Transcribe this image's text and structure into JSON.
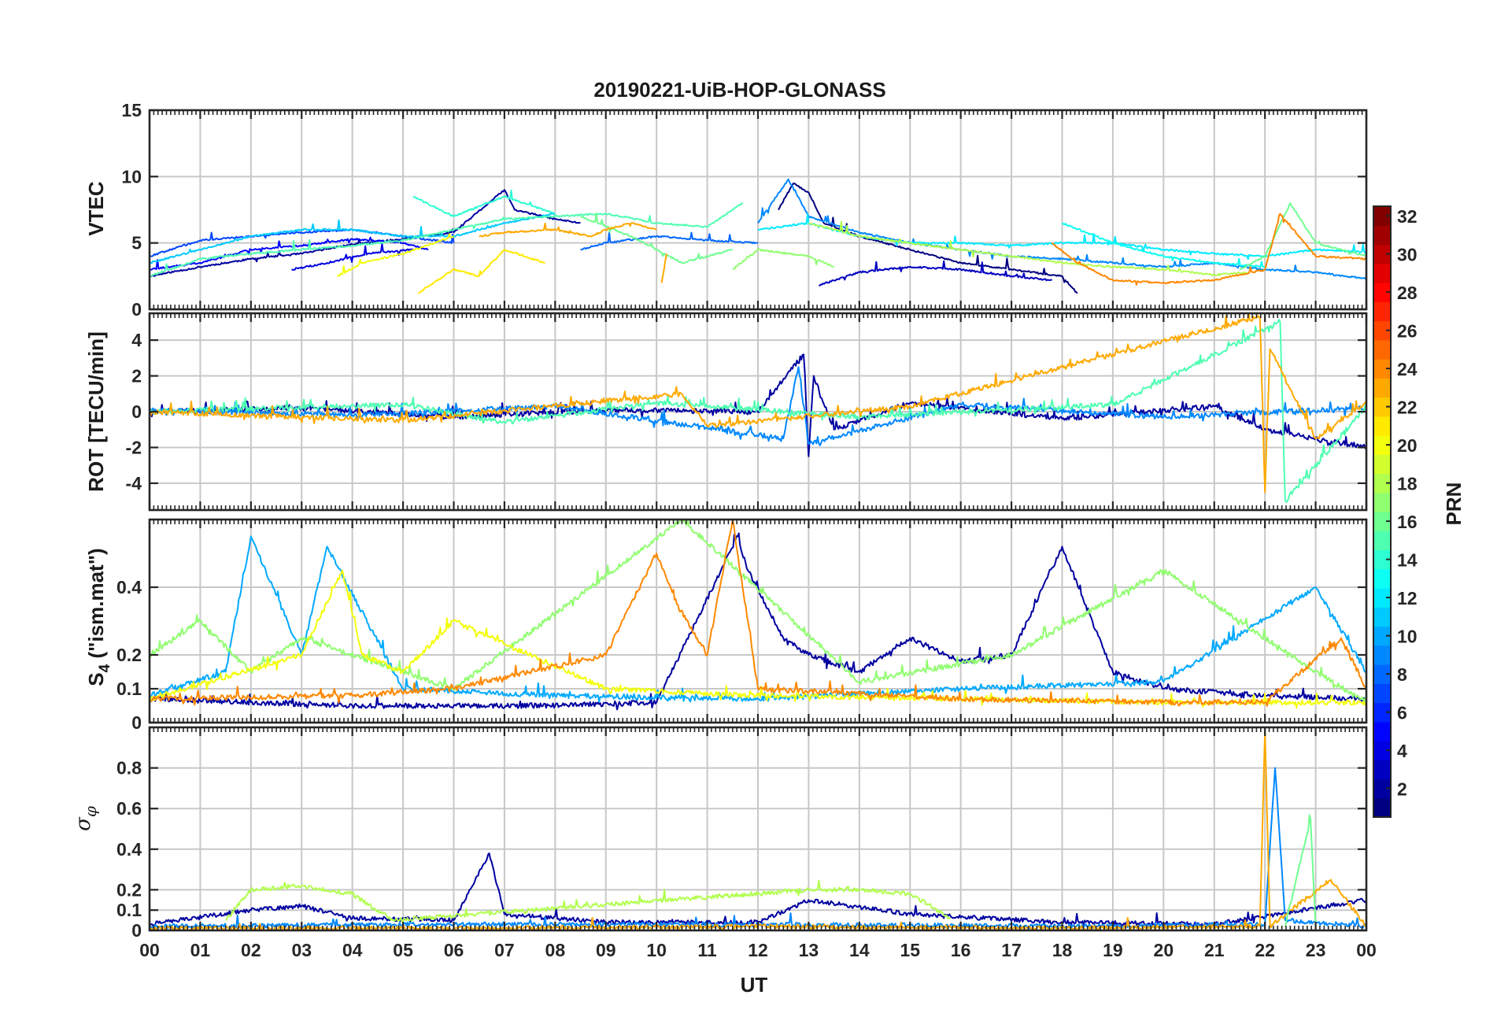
{
  "figure": {
    "title": "20190221-UiB-HOP-GLONASS",
    "x_axis_label": "UT",
    "colorbar_label": "PRN"
  },
  "colors": {
    "grid": "#c8c8c8",
    "axes": "#262626",
    "colormap": "jet"
  },
  "chart_data": [
    {
      "type": "line",
      "panel": "VTEC",
      "ylabel": "VTEC",
      "ylim": [
        0,
        15
      ],
      "yticks": [
        0,
        5,
        10,
        15
      ],
      "ytick_labels": [
        "0",
        "5",
        "10",
        "15"
      ],
      "xlim": [
        0,
        24
      ],
      "xtick_labels": [
        "00",
        "01",
        "02",
        "03",
        "04",
        "05",
        "06",
        "07",
        "08",
        "09",
        "10",
        "11",
        "12",
        "13",
        "14",
        "15",
        "16",
        "17",
        "18",
        "19",
        "20",
        "21",
        "22",
        "23",
        "00"
      ],
      "xlabel": "",
      "grid": true,
      "series": [
        {
          "prn": 2,
          "x": [
            0.0,
            1.0,
            2.0,
            3.0,
            4.0,
            5.0,
            6.0,
            7.0,
            7.2,
            8.0,
            8.5
          ],
          "y": [
            2.5,
            3.2,
            3.8,
            4.2,
            4.9,
            5.3,
            5.8,
            9.0,
            7.5,
            6.8,
            6.5
          ]
        },
        {
          "prn": 1,
          "x": [
            12.4,
            12.7,
            13.0,
            13.3,
            14.0,
            15.0,
            16.0,
            17.0,
            18.0,
            18.3
          ],
          "y": [
            7.5,
            9.5,
            8.8,
            6.5,
            5.5,
            4.5,
            3.5,
            3.0,
            2.5,
            1.2
          ]
        },
        {
          "prn": 4,
          "x": [
            2.8,
            3.5,
            4.3,
            5.2
          ],
          "y": [
            3.0,
            3.5,
            4.2,
            4.5
          ]
        },
        {
          "prn": 5,
          "x": [
            0.0,
            1.0,
            2.0,
            3.0,
            4.0,
            5.0,
            5.5
          ],
          "y": [
            3.0,
            3.5,
            4.5,
            4.8,
            5.3,
            5.0,
            4.5
          ]
        },
        {
          "prn": 3,
          "x": [
            13.2,
            14.0,
            15.0,
            16.0,
            17.0,
            17.8
          ],
          "y": [
            1.8,
            2.8,
            3.2,
            3.0,
            2.5,
            2.2
          ]
        },
        {
          "prn": 7,
          "x": [
            0.0,
            1.0,
            2.0,
            3.0,
            4.0,
            5.0,
            6.0
          ],
          "y": [
            4.0,
            5.2,
            5.5,
            5.8,
            6.0,
            5.5,
            5.0
          ]
        },
        {
          "prn": 8,
          "x": [
            8.5,
            9.0,
            10.0,
            11.0,
            12.0
          ],
          "y": [
            4.5,
            5.0,
            5.5,
            5.2,
            5.0
          ]
        },
        {
          "prn": 9,
          "x": [
            12.0,
            12.6,
            13.0,
            14.0,
            15.0,
            16.0,
            17.0,
            18.0,
            19.0,
            20.0,
            21.0,
            22.0,
            23.0,
            24.0
          ],
          "y": [
            6.5,
            9.8,
            7.0,
            5.8,
            5.0,
            4.5,
            4.0,
            3.8,
            3.5,
            3.2,
            3.5,
            3.0,
            2.8,
            2.3
          ]
        },
        {
          "prn": 11,
          "x": [
            0.0,
            1.0,
            2.0,
            3.0,
            4.0,
            5.0,
            6.0,
            7.0,
            8.0
          ],
          "y": [
            3.5,
            4.5,
            5.5,
            6.0,
            6.0,
            5.5,
            5.5,
            6.5,
            7.2
          ]
        },
        {
          "prn": 12,
          "x": [
            12.0,
            13.0,
            14.0,
            15.0,
            16.0,
            17.0,
            18.0,
            19.0,
            20.0,
            21.0,
            22.0,
            23.0,
            24.0
          ],
          "y": [
            6.0,
            6.5,
            5.5,
            5.0,
            5.0,
            4.8,
            5.0,
            5.0,
            4.5,
            4.2,
            4.0,
            4.5,
            4.3
          ]
        },
        {
          "prn": 14,
          "x": [
            5.2,
            6.0,
            7.0,
            8.0
          ],
          "y": [
            8.5,
            7.0,
            8.5,
            7.2
          ]
        },
        {
          "prn": 13,
          "x": [
            18.0,
            19.0,
            20.0,
            21.0,
            22.0
          ],
          "y": [
            6.5,
            5.0,
            4.0,
            3.5,
            3.2
          ]
        },
        {
          "prn": 15,
          "x": [
            0.0,
            1.0,
            2.0,
            3.0,
            4.0,
            5.0,
            6.0,
            7.0,
            8.0,
            9.0,
            10.0,
            11.0,
            11.7
          ],
          "y": [
            2.5,
            3.8,
            4.2,
            4.5,
            4.8,
            5.2,
            6.0,
            6.8,
            7.0,
            7.2,
            6.5,
            6.2,
            8.0
          ]
        },
        {
          "prn": 16,
          "x": [
            8.5,
            9.5,
            10.5,
            11.5
          ],
          "y": [
            7.0,
            5.5,
            3.5,
            4.5
          ]
        },
        {
          "prn": 17,
          "x": [
            11.5,
            12.0,
            13.0,
            13.5
          ],
          "y": [
            3.0,
            4.5,
            4.0,
            3.2
          ]
        },
        {
          "prn": 18,
          "x": [
            13.0,
            14.0,
            15.0,
            16.0,
            17.0,
            18.0,
            19.0,
            20.0,
            21.0,
            21.7
          ],
          "y": [
            6.5,
            5.5,
            5.0,
            4.5,
            4.0,
            3.5,
            3.2,
            3.0,
            2.6,
            2.8
          ]
        },
        {
          "prn": 16,
          "x": [
            21.5,
            22.0,
            22.5,
            23.0,
            24.0
          ],
          "y": [
            3.0,
            4.0,
            8.0,
            5.0,
            4.0
          ]
        },
        {
          "prn": 20,
          "x": [
            3.7,
            4.2,
            5.0,
            6.0
          ],
          "y": [
            2.5,
            3.5,
            4.2,
            5.5
          ]
        },
        {
          "prn": 21,
          "x": [
            5.3,
            5.6,
            6.0,
            6.5,
            7.0,
            7.8
          ],
          "y": [
            1.2,
            2.0,
            3.0,
            2.5,
            4.5,
            3.5
          ]
        },
        {
          "prn": 23,
          "x": [
            6.5,
            7.0,
            8.0,
            8.7,
            9.0,
            9.5,
            10.0
          ],
          "y": [
            5.5,
            5.8,
            6.0,
            5.5,
            6.0,
            6.5,
            6.0
          ]
        },
        {
          "prn": 23,
          "x": [
            10.1,
            10.2
          ],
          "y": [
            2.0,
            4.2
          ]
        },
        {
          "prn": 24,
          "x": [
            17.8,
            18.3,
            19.0,
            20.0,
            21.0,
            22.0,
            22.3,
            23.0,
            24.0
          ],
          "y": [
            5.0,
            3.5,
            2.2,
            2.0,
            2.2,
            3.0,
            7.2,
            4.0,
            3.8
          ]
        }
      ]
    },
    {
      "type": "line",
      "panel": "ROT",
      "ylabel": "ROT [TECU/min]",
      "ylim": [
        -5.5,
        5.5
      ],
      "yticks": [
        -4,
        -2,
        0,
        2,
        4
      ],
      "ytick_labels": [
        "-4",
        "-2",
        "0",
        "2",
        "4"
      ],
      "xlim": [
        0,
        24
      ],
      "xtick_labels": [
        "00",
        "01",
        "02",
        "03",
        "04",
        "05",
        "06",
        "07",
        "08",
        "09",
        "10",
        "11",
        "12",
        "13",
        "14",
        "15",
        "16",
        "17",
        "18",
        "19",
        "20",
        "21",
        "22",
        "23",
        "00"
      ],
      "xlabel": "",
      "grid": true,
      "series": [
        {
          "prn": 2,
          "x": [
            0.0,
            3.0,
            6.0,
            9.0,
            12.0,
            12.9,
            13.0,
            13.1,
            13.5,
            15.0,
            18.0,
            21.0,
            22.0,
            23.0,
            24.0
          ],
          "y": [
            0.0,
            0.2,
            -0.3,
            0.1,
            0.0,
            3.2,
            -2.5,
            2.0,
            -1.0,
            0.5,
            -0.4,
            0.3,
            -1.0,
            -1.5,
            -2.0
          ]
        },
        {
          "prn": 9,
          "x": [
            0.0,
            4.0,
            8.0,
            12.5,
            12.8,
            13.0,
            16.0,
            20.0,
            24.0
          ],
          "y": [
            0.1,
            -0.2,
            0.3,
            -1.5,
            2.5,
            -1.8,
            0.4,
            -0.3,
            0.2
          ]
        },
        {
          "prn": 15,
          "x": [
            0.0,
            5.0,
            7.0,
            10.0,
            14.0,
            19.0,
            22.3,
            22.4,
            24.0
          ],
          "y": [
            0.0,
            0.4,
            -0.6,
            0.5,
            -0.3,
            0.4,
            5.0,
            -5.0,
            0.3
          ]
        },
        {
          "prn": 23,
          "x": [
            0.0,
            5.0,
            9.0,
            10.5,
            11.0,
            15.0,
            21.9,
            22.0,
            22.1,
            23.0,
            24.0
          ],
          "y": [
            0.0,
            -0.5,
            0.6,
            1.0,
            -0.8,
            0.3,
            5.3,
            -4.5,
            3.5,
            -1.5,
            0.5
          ]
        }
      ]
    },
    {
      "type": "line",
      "panel": "S4",
      "ylabel": "S4 (\"ism.mat\")",
      "ylim": [
        0,
        0.6
      ],
      "yticks": [
        0,
        0.1,
        0.2,
        0.4
      ],
      "ytick_labels": [
        "0",
        "0.1",
        "0.2",
        "0.4"
      ],
      "xlim": [
        0,
        24
      ],
      "xtick_labels": [
        "00",
        "01",
        "02",
        "03",
        "04",
        "05",
        "06",
        "07",
        "08",
        "09",
        "10",
        "11",
        "12",
        "13",
        "14",
        "15",
        "16",
        "17",
        "18",
        "19",
        "20",
        "21",
        "22",
        "23",
        "00"
      ],
      "xlabel": "",
      "grid": true,
      "series": [
        {
          "prn": 2,
          "x": [
            0.0,
            2.0,
            4.0,
            6.0,
            8.0,
            10.0,
            11.6,
            11.8,
            12.5,
            13.0,
            14.0,
            15.0,
            16.0,
            17.0,
            18.0,
            19.0,
            20.0,
            22.0,
            24.0
          ],
          "y": [
            0.07,
            0.06,
            0.05,
            0.05,
            0.05,
            0.06,
            0.55,
            0.45,
            0.25,
            0.2,
            0.15,
            0.25,
            0.18,
            0.2,
            0.52,
            0.15,
            0.1,
            0.08,
            0.07
          ]
        },
        {
          "prn": 10,
          "x": [
            0.0,
            1.5,
            2.0,
            3.0,
            3.5,
            5.0,
            8.0,
            12.0,
            16.0,
            20.0,
            23.0,
            24.0
          ],
          "y": [
            0.08,
            0.15,
            0.55,
            0.2,
            0.52,
            0.1,
            0.08,
            0.07,
            0.1,
            0.12,
            0.4,
            0.15
          ]
        },
        {
          "prn": 17,
          "x": [
            0.0,
            1.0,
            2.0,
            3.0,
            6.0,
            10.5,
            14.0,
            17.0,
            20.0,
            21.5,
            23.0,
            24.0
          ],
          "y": [
            0.2,
            0.3,
            0.15,
            0.25,
            0.1,
            0.6,
            0.12,
            0.2,
            0.45,
            0.3,
            0.15,
            0.06
          ]
        },
        {
          "prn": 20,
          "x": [
            0.0,
            3.0,
            3.8,
            4.2,
            5.0,
            6.0,
            9.0,
            12.0,
            16.0,
            20.0,
            24.0
          ],
          "y": [
            0.07,
            0.2,
            0.45,
            0.2,
            0.15,
            0.3,
            0.1,
            0.08,
            0.07,
            0.06,
            0.06
          ]
        },
        {
          "prn": 24,
          "x": [
            0.0,
            4.0,
            6.0,
            9.0,
            10.0,
            10.4,
            11.0,
            11.5,
            12.0,
            16.0,
            20.0,
            22.0,
            23.5,
            24.0
          ],
          "y": [
            0.07,
            0.08,
            0.1,
            0.2,
            0.5,
            0.35,
            0.2,
            0.6,
            0.1,
            0.07,
            0.06,
            0.06,
            0.25,
            0.1
          ]
        }
      ]
    },
    {
      "type": "line",
      "panel": "sigma_phi",
      "ylabel": "σφ",
      "ylim": [
        0,
        1
      ],
      "yticks": [
        0,
        0.1,
        0.2,
        0.4,
        0.6,
        0.8
      ],
      "ytick_labels": [
        "0",
        "0.1",
        "0.2",
        "0.4",
        "0.6",
        "0.8"
      ],
      "xlim": [
        0,
        24
      ],
      "xtick_labels": [
        "00",
        "01",
        "02",
        "03",
        "04",
        "05",
        "06",
        "07",
        "08",
        "09",
        "10",
        "11",
        "12",
        "13",
        "14",
        "15",
        "16",
        "17",
        "18",
        "19",
        "20",
        "21",
        "22",
        "23",
        "00"
      ],
      "xlabel": "UT",
      "grid": true,
      "series": [
        {
          "prn": 2,
          "x": [
            0.0,
            2.0,
            3.0,
            4.0,
            6.0,
            6.7,
            7.0,
            9.0,
            12.0,
            13.0,
            15.0,
            18.0,
            21.0,
            24.0
          ],
          "y": [
            0.03,
            0.1,
            0.12,
            0.06,
            0.05,
            0.38,
            0.08,
            0.04,
            0.04,
            0.15,
            0.08,
            0.04,
            0.03,
            0.15
          ]
        },
        {
          "prn": 18,
          "x": [
            1.5,
            2.0,
            3.0,
            4.0,
            4.8,
            13.0,
            14.0,
            15.0,
            15.8
          ],
          "y": [
            0.05,
            0.2,
            0.22,
            0.18,
            0.05,
            0.2,
            0.2,
            0.18,
            0.06
          ]
        },
        {
          "prn": 9,
          "x": [
            0.0,
            6.0,
            12.0,
            18.0,
            22.0,
            22.2,
            22.4,
            24.0
          ],
          "y": [
            0.02,
            0.03,
            0.03,
            0.02,
            0.03,
            0.8,
            0.05,
            0.02
          ]
        },
        {
          "prn": 23,
          "x": [
            0.0,
            6.0,
            12.0,
            18.0,
            21.9,
            22.0,
            22.1,
            23.3,
            24.0
          ],
          "y": [
            0.01,
            0.01,
            0.02,
            0.01,
            0.02,
            0.98,
            0.02,
            0.25,
            0.02
          ]
        },
        {
          "prn": 16,
          "x": [
            22.4,
            22.9,
            23.0
          ],
          "y": [
            0.02,
            0.55,
            0.02
          ]
        }
      ]
    }
  ],
  "colorbar": {
    "min": 1,
    "max": 32,
    "tick_labels": [
      "2",
      "4",
      "6",
      "8",
      "10",
      "12",
      "14",
      "16",
      "18",
      "20",
      "22",
      "24",
      "26",
      "28",
      "30",
      "32"
    ]
  }
}
